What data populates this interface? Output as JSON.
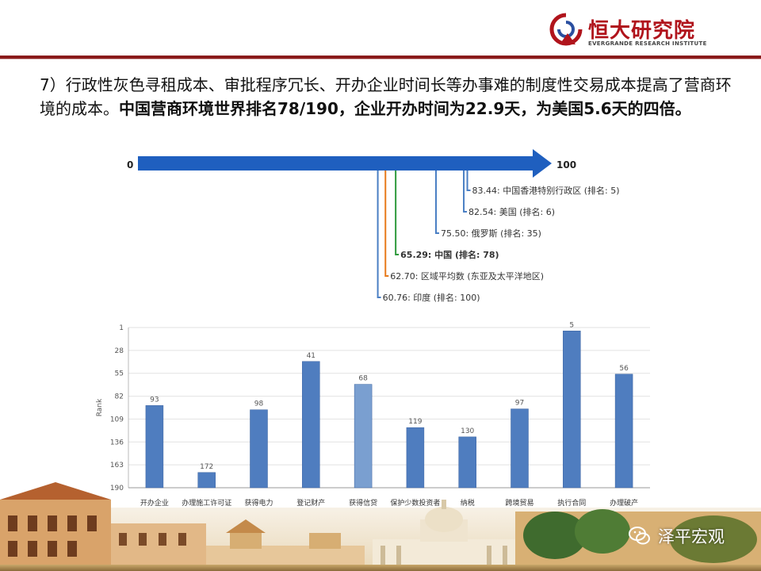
{
  "header": {
    "logo_cn": "恒大研究院",
    "logo_en": "EVERGRANDE RESEARCH INSTITUTE",
    "bar_color": "#8a1a1a"
  },
  "intro": {
    "normal": "7）行政性灰色寻租成本、审批程序冗长、开办企业时间长等办事难的制度性交易成本提高了营商环境的成本。",
    "bold": "中国营商环境世界排名78/190，企业开办时间为22.9天，为美国5.6天的四倍。"
  },
  "diagram": {
    "start_label": "0",
    "end_label": "100",
    "scale": [
      0,
      100
    ],
    "arrow_color": "#1f5fbf",
    "items": [
      {
        "value": 83.44,
        "label": "83.44: 中国香港特别行政区 (排名: 5)",
        "color": "#4a7fc4",
        "bold": false
      },
      {
        "value": 82.54,
        "label": "82.54: 美国 (排名: 6)",
        "color": "#4a7fc4",
        "bold": false
      },
      {
        "value": 75.5,
        "label": "75.50: 俄罗斯 (排名: 35)",
        "color": "#4a7fc4",
        "bold": false
      },
      {
        "value": 65.29,
        "label": "65.29: 中国 (排名: 78)",
        "color": "#2e9a3c",
        "bold": true
      },
      {
        "value": 62.7,
        "label": "62.70: 区域平均数 (东亚及太平洋地区)",
        "color": "#e77a1a",
        "bold": false
      },
      {
        "value": 60.76,
        "label": "60.76: 印度 (排名: 100)",
        "color": "#4a7fc4",
        "bold": false
      }
    ]
  },
  "chart_data": {
    "type": "bar",
    "ylabel": "Rank",
    "ylim": [
      1,
      190
    ],
    "y_inverted": true,
    "yticks": [
      1,
      28,
      55,
      82,
      109,
      136,
      163,
      190
    ],
    "grid": true,
    "categories": [
      "开办企业",
      "办理施工许可证",
      "获得电力",
      "登记财产",
      "获得信贷",
      "保护少数投资者",
      "纳税",
      "跨境贸易",
      "执行合同",
      "办理破产"
    ],
    "values": [
      93,
      172,
      98,
      41,
      68,
      119,
      130,
      97,
      5,
      56
    ],
    "colors": [
      "#4f7dbf",
      "#4f7dbf",
      "#4f7dbf",
      "#4f7dbf",
      "#7a9fd0",
      "#4f7dbf",
      "#4f7dbf",
      "#4f7dbf",
      "#4f7dbf",
      "#4f7dbf"
    ]
  },
  "footer": {
    "wechat_name": "泽平宏观"
  }
}
